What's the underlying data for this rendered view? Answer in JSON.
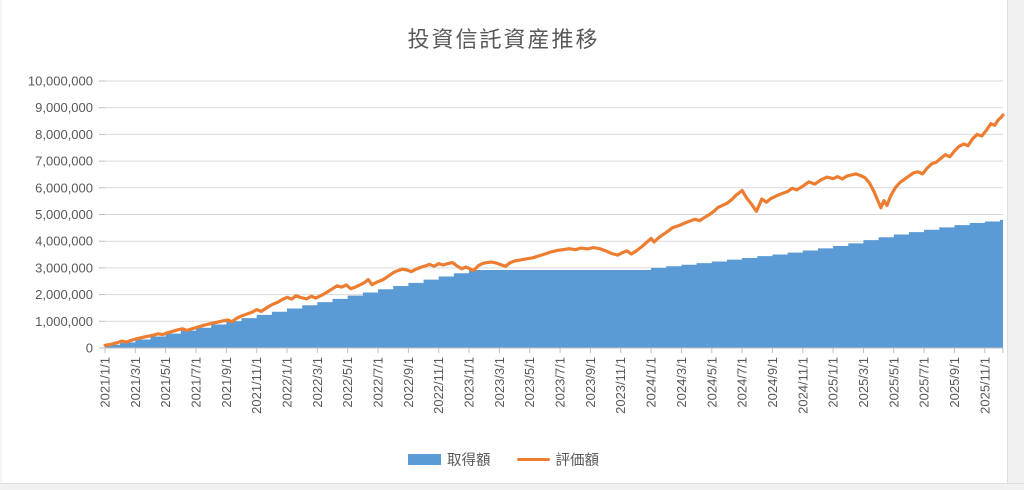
{
  "chart_data": {
    "type": "area+line combo",
    "title": "投資信託資産推移",
    "xlabel": "",
    "ylabel": "",
    "value_unit": "million JPY",
    "ylim": [
      0,
      10000000
    ],
    "y_tick_step": 1000000,
    "grid": true,
    "legend_position": "bottom-center",
    "y_tick_labels": [
      "0",
      "1,000,000",
      "2,000,000",
      "3,000,000",
      "4,000,000",
      "5,000,000",
      "6,000,000",
      "7,000,000",
      "8,000,000",
      "9,000,000",
      "10,000,000"
    ],
    "x_tick_labels": [
      "2021/1/1",
      "2021/3/1",
      "2021/5/1",
      "2021/7/1",
      "2021/9/1",
      "2021/11/1",
      "2022/1/1",
      "2022/3/1",
      "2022/5/1",
      "2022/7/1",
      "2022/9/1",
      "2022/11/1",
      "2023/1/1",
      "2023/3/1",
      "2023/5/1",
      "2023/7/1",
      "2023/9/1",
      "2023/11/1",
      "2024/1/1",
      "2024/3/1",
      "2024/5/1",
      "2024/7/1",
      "2024/9/1",
      "2024/11/1",
      "2025/1/1",
      "2025/3/1",
      "2025/5/1",
      "2025/7/1",
      "2025/9/1",
      "2025/11/1"
    ],
    "x_months_domain": [
      0,
      59.2
    ],
    "x_label_month_step": 2,
    "series": [
      {
        "name": "取得額",
        "type": "area",
        "style": "step-monthly",
        "color": "#5B9BD5",
        "start_month": 0,
        "extend_to_month": 59.2,
        "values_monthly_millions": [
          0.12,
          0.21,
          0.32,
          0.43,
          0.54,
          0.65,
          0.76,
          0.88,
          1.0,
          1.12,
          1.24,
          1.36,
          1.48,
          1.6,
          1.72,
          1.84,
          1.96,
          2.08,
          2.2,
          2.32,
          2.44,
          2.56,
          2.68,
          2.8,
          2.92,
          2.92,
          2.92,
          2.92,
          2.92,
          2.92,
          2.92,
          2.92,
          2.92,
          2.92,
          2.92,
          2.92,
          3.0,
          3.06,
          3.12,
          3.18,
          3.24,
          3.31,
          3.37,
          3.44,
          3.5,
          3.57,
          3.65,
          3.73,
          3.82,
          3.92,
          4.04,
          4.15,
          4.25,
          4.34,
          4.43,
          4.52,
          4.6,
          4.68,
          4.74,
          4.8
        ]
      },
      {
        "name": "評価額",
        "type": "line",
        "color": "#ED7D31",
        "stroke_width": 3.2,
        "points_month_value_millions": [
          [
            0,
            0.1
          ],
          [
            0.4,
            0.14
          ],
          [
            0.8,
            0.2
          ],
          [
            1.1,
            0.26
          ],
          [
            1.4,
            0.22
          ],
          [
            1.8,
            0.3
          ],
          [
            2.1,
            0.35
          ],
          [
            2.5,
            0.4
          ],
          [
            2.8,
            0.44
          ],
          [
            3.1,
            0.47
          ],
          [
            3.5,
            0.53
          ],
          [
            3.8,
            0.5
          ],
          [
            4.1,
            0.57
          ],
          [
            4.5,
            0.63
          ],
          [
            4.8,
            0.68
          ],
          [
            5.1,
            0.72
          ],
          [
            5.4,
            0.66
          ],
          [
            5.8,
            0.73
          ],
          [
            6.1,
            0.78
          ],
          [
            6.5,
            0.85
          ],
          [
            6.8,
            0.89
          ],
          [
            7.1,
            0.93
          ],
          [
            7.5,
            0.98
          ],
          [
            7.8,
            1.02
          ],
          [
            8.1,
            1.05
          ],
          [
            8.35,
            0.98
          ],
          [
            8.7,
            1.12
          ],
          [
            9.0,
            1.2
          ],
          [
            9.4,
            1.28
          ],
          [
            9.7,
            1.34
          ],
          [
            10.0,
            1.44
          ],
          [
            10.3,
            1.37
          ],
          [
            10.7,
            1.52
          ],
          [
            11.0,
            1.62
          ],
          [
            11.4,
            1.72
          ],
          [
            11.7,
            1.82
          ],
          [
            12.0,
            1.9
          ],
          [
            12.3,
            1.83
          ],
          [
            12.6,
            1.96
          ],
          [
            12.9,
            1.89
          ],
          [
            13.3,
            1.84
          ],
          [
            13.6,
            1.94
          ],
          [
            13.9,
            1.87
          ],
          [
            14.3,
            1.98
          ],
          [
            14.6,
            2.08
          ],
          [
            15.0,
            2.22
          ],
          [
            15.3,
            2.33
          ],
          [
            15.6,
            2.28
          ],
          [
            15.9,
            2.36
          ],
          [
            16.2,
            2.22
          ],
          [
            16.5,
            2.28
          ],
          [
            16.8,
            2.36
          ],
          [
            17.1,
            2.45
          ],
          [
            17.35,
            2.56
          ],
          [
            17.6,
            2.37
          ],
          [
            17.9,
            2.46
          ],
          [
            18.3,
            2.55
          ],
          [
            18.6,
            2.66
          ],
          [
            19.0,
            2.82
          ],
          [
            19.3,
            2.9
          ],
          [
            19.6,
            2.95
          ],
          [
            19.9,
            2.92
          ],
          [
            20.2,
            2.86
          ],
          [
            20.5,
            2.95
          ],
          [
            20.8,
            3.02
          ],
          [
            21.1,
            3.07
          ],
          [
            21.4,
            3.13
          ],
          [
            21.7,
            3.06
          ],
          [
            22.0,
            3.16
          ],
          [
            22.3,
            3.11
          ],
          [
            22.6,
            3.16
          ],
          [
            22.9,
            3.2
          ],
          [
            23.2,
            3.08
          ],
          [
            23.5,
            2.97
          ],
          [
            23.8,
            3.03
          ],
          [
            24.0,
            2.98
          ],
          [
            24.3,
            2.9
          ],
          [
            24.6,
            3.08
          ],
          [
            24.9,
            3.17
          ],
          [
            25.2,
            3.2
          ],
          [
            25.5,
            3.22
          ],
          [
            25.8,
            3.18
          ],
          [
            26.1,
            3.12
          ],
          [
            26.4,
            3.06
          ],
          [
            26.7,
            3.19
          ],
          [
            27.0,
            3.26
          ],
          [
            27.4,
            3.3
          ],
          [
            27.8,
            3.34
          ],
          [
            28.2,
            3.38
          ],
          [
            28.6,
            3.45
          ],
          [
            29.0,
            3.52
          ],
          [
            29.4,
            3.6
          ],
          [
            29.8,
            3.65
          ],
          [
            30.2,
            3.68
          ],
          [
            30.6,
            3.72
          ],
          [
            31.0,
            3.68
          ],
          [
            31.4,
            3.74
          ],
          [
            31.8,
            3.71
          ],
          [
            32.2,
            3.76
          ],
          [
            32.6,
            3.72
          ],
          [
            33.0,
            3.64
          ],
          [
            33.4,
            3.54
          ],
          [
            33.8,
            3.48
          ],
          [
            34.1,
            3.57
          ],
          [
            34.4,
            3.64
          ],
          [
            34.7,
            3.52
          ],
          [
            35.0,
            3.63
          ],
          [
            35.4,
            3.8
          ],
          [
            35.7,
            3.95
          ],
          [
            36.0,
            4.1
          ],
          [
            36.2,
            3.97
          ],
          [
            36.5,
            4.13
          ],
          [
            36.8,
            4.25
          ],
          [
            37.1,
            4.37
          ],
          [
            37.4,
            4.5
          ],
          [
            37.7,
            4.56
          ],
          [
            38.0,
            4.62
          ],
          [
            38.3,
            4.7
          ],
          [
            38.6,
            4.76
          ],
          [
            38.9,
            4.82
          ],
          [
            39.2,
            4.77
          ],
          [
            39.5,
            4.88
          ],
          [
            39.8,
            4.98
          ],
          [
            40.1,
            5.1
          ],
          [
            40.4,
            5.26
          ],
          [
            40.7,
            5.34
          ],
          [
            41.0,
            5.42
          ],
          [
            41.3,
            5.55
          ],
          [
            41.6,
            5.72
          ],
          [
            42.0,
            5.9
          ],
          [
            42.3,
            5.62
          ],
          [
            42.6,
            5.4
          ],
          [
            42.95,
            5.12
          ],
          [
            43.3,
            5.58
          ],
          [
            43.6,
            5.46
          ],
          [
            43.9,
            5.6
          ],
          [
            44.2,
            5.68
          ],
          [
            44.6,
            5.78
          ],
          [
            45.0,
            5.86
          ],
          [
            45.3,
            5.98
          ],
          [
            45.6,
            5.92
          ],
          [
            46.0,
            6.06
          ],
          [
            46.4,
            6.22
          ],
          [
            46.8,
            6.14
          ],
          [
            47.2,
            6.3
          ],
          [
            47.6,
            6.4
          ],
          [
            48.0,
            6.34
          ],
          [
            48.3,
            6.42
          ],
          [
            48.6,
            6.33
          ],
          [
            48.9,
            6.44
          ],
          [
            49.2,
            6.48
          ],
          [
            49.5,
            6.52
          ],
          [
            49.8,
            6.46
          ],
          [
            50.1,
            6.38
          ],
          [
            50.4,
            6.18
          ],
          [
            50.7,
            5.85
          ],
          [
            51.0,
            5.45
          ],
          [
            51.15,
            5.25
          ],
          [
            51.35,
            5.52
          ],
          [
            51.55,
            5.34
          ],
          [
            51.8,
            5.7
          ],
          [
            52.1,
            6.0
          ],
          [
            52.4,
            6.2
          ],
          [
            52.7,
            6.32
          ],
          [
            53.0,
            6.44
          ],
          [
            53.3,
            6.56
          ],
          [
            53.6,
            6.6
          ],
          [
            53.9,
            6.52
          ],
          [
            54.2,
            6.74
          ],
          [
            54.5,
            6.9
          ],
          [
            54.8,
            6.96
          ],
          [
            55.1,
            7.1
          ],
          [
            55.4,
            7.24
          ],
          [
            55.7,
            7.16
          ],
          [
            56.0,
            7.38
          ],
          [
            56.3,
            7.55
          ],
          [
            56.6,
            7.64
          ],
          [
            56.9,
            7.58
          ],
          [
            57.2,
            7.84
          ],
          [
            57.5,
            8.0
          ],
          [
            57.8,
            7.94
          ],
          [
            58.1,
            8.15
          ],
          [
            58.4,
            8.4
          ],
          [
            58.65,
            8.34
          ],
          [
            58.9,
            8.55
          ],
          [
            59.05,
            8.62
          ],
          [
            59.2,
            8.73
          ]
        ]
      }
    ],
    "legend": [
      {
        "label": "取得額",
        "swatch": "rect",
        "color": "#5B9BD5"
      },
      {
        "label": "評価額",
        "swatch": "line",
        "color": "#ED7D31"
      }
    ]
  },
  "style": {
    "title_color": "#595959",
    "tick_label_color": "#595959",
    "gridline_color": "#D9D9D9",
    "axis_line_color": "#BFBFBF",
    "background": "#FFFFFF"
  }
}
